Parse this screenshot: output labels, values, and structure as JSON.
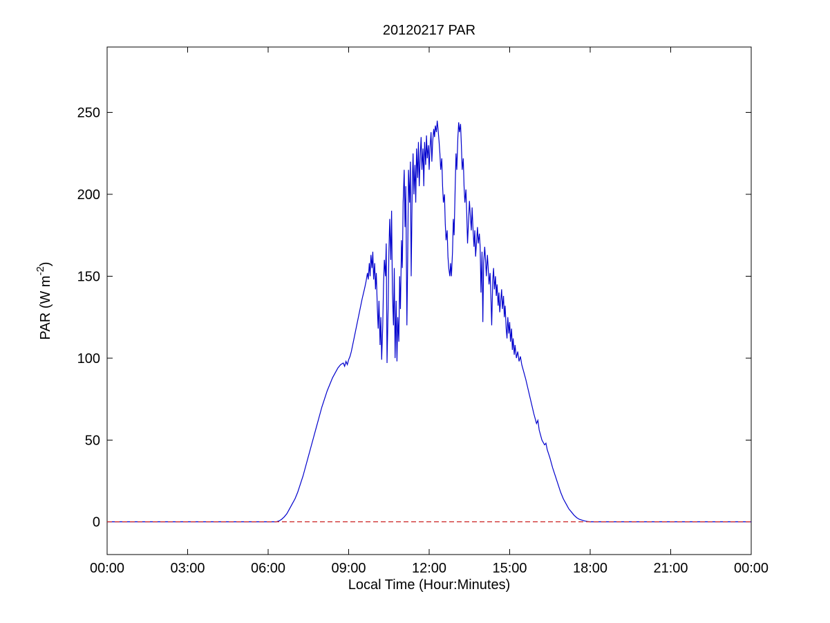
{
  "figure": {
    "title": "20120217 PAR",
    "xlabel": "Local Time (Hour:Minutes)",
    "ylabel_prefix": "PAR (W m",
    "ylabel_superscript": "-2",
    "ylabel_suffix": ")"
  },
  "axes": {
    "x_tick_labels": [
      "00:00",
      "03:00",
      "06:00",
      "09:00",
      "12:00",
      "15:00",
      "18:00",
      "21:00",
      "00:00"
    ],
    "y_tick_labels": [
      "0",
      "50",
      "100",
      "150",
      "200",
      "250"
    ]
  },
  "colors": {
    "data_line": "#0000CC",
    "zero_reference_line": "#CC2222",
    "axis": "#000000",
    "background": "#FFFFFF"
  },
  "chart_data": {
    "type": "line",
    "title": "20120217 PAR",
    "xlabel": "Local Time (Hour:Minutes)",
    "ylabel": "PAR (W m^-2)",
    "x_unit": "local time in hours (00:00 - 24:00)",
    "y_unit": "W m^-2",
    "xlim": [
      0,
      24
    ],
    "ylim": [
      -20,
      290
    ],
    "x_tick_hours": [
      0,
      3,
      6,
      9,
      12,
      15,
      18,
      21,
      24
    ],
    "y_tick_values": [
      0,
      50,
      100,
      150,
      200,
      250
    ],
    "grid": false,
    "legend": "none",
    "series": [
      {
        "name": "PAR",
        "color": "#0000CC",
        "style": "solid",
        "points": [
          [
            0,
            0
          ],
          [
            1,
            0
          ],
          [
            2,
            0
          ],
          [
            3,
            0
          ],
          [
            4,
            0
          ],
          [
            5,
            0
          ],
          [
            6,
            0
          ],
          [
            6.3,
            0
          ],
          [
            6.4,
            0.5
          ],
          [
            6.5,
            1.5
          ],
          [
            6.6,
            3
          ],
          [
            6.7,
            5
          ],
          [
            6.8,
            8
          ],
          [
            6.9,
            11
          ],
          [
            7.0,
            14
          ],
          [
            7.1,
            18
          ],
          [
            7.2,
            23
          ],
          [
            7.3,
            28
          ],
          [
            7.4,
            34
          ],
          [
            7.5,
            40
          ],
          [
            7.6,
            46
          ],
          [
            7.7,
            52
          ],
          [
            7.8,
            58
          ],
          [
            7.9,
            64
          ],
          [
            8.0,
            70
          ],
          [
            8.1,
            75
          ],
          [
            8.2,
            80
          ],
          [
            8.3,
            84
          ],
          [
            8.4,
            88
          ],
          [
            8.5,
            91
          ],
          [
            8.6,
            94
          ],
          [
            8.7,
            96
          ],
          [
            8.8,
            97
          ],
          [
            8.85,
            95
          ],
          [
            8.9,
            98
          ],
          [
            8.95,
            96
          ],
          [
            9.0,
            99
          ],
          [
            9.05,
            101
          ],
          [
            9.1,
            104
          ],
          [
            9.2,
            112
          ],
          [
            9.3,
            120
          ],
          [
            9.4,
            128
          ],
          [
            9.5,
            136
          ],
          [
            9.6,
            143
          ],
          [
            9.65,
            147
          ],
          [
            9.7,
            152
          ],
          [
            9.73,
            148
          ],
          [
            9.77,
            158
          ],
          [
            9.8,
            150
          ],
          [
            9.83,
            163
          ],
          [
            9.87,
            155
          ],
          [
            9.9,
            165
          ],
          [
            9.93,
            148
          ],
          [
            9.97,
            158
          ],
          [
            10.0,
            142
          ],
          [
            10.03,
            152
          ],
          [
            10.07,
            130
          ],
          [
            10.1,
            118
          ],
          [
            10.13,
            135
          ],
          [
            10.17,
            108
          ],
          [
            10.2,
            125
          ],
          [
            10.23,
            99
          ],
          [
            10.27,
            120
          ],
          [
            10.3,
            145
          ],
          [
            10.33,
            160
          ],
          [
            10.37,
            150
          ],
          [
            10.4,
            170
          ],
          [
            10.43,
            97
          ],
          [
            10.47,
            130
          ],
          [
            10.5,
            165
          ],
          [
            10.53,
            185
          ],
          [
            10.57,
            160
          ],
          [
            10.6,
            190
          ],
          [
            10.63,
            140
          ],
          [
            10.67,
            120
          ],
          [
            10.7,
            155
          ],
          [
            10.73,
            100
          ],
          [
            10.77,
            135
          ],
          [
            10.8,
            98
          ],
          [
            10.83,
            125
          ],
          [
            10.87,
            110
          ],
          [
            10.9,
            150
          ],
          [
            10.93,
            130
          ],
          [
            10.97,
            172
          ],
          [
            11.0,
            155
          ],
          [
            11.03,
            195
          ],
          [
            11.07,
            215
          ],
          [
            11.1,
            180
          ],
          [
            11.13,
            205
          ],
          [
            11.17,
            120
          ],
          [
            11.2,
            160
          ],
          [
            11.23,
            215
          ],
          [
            11.27,
            195
          ],
          [
            11.3,
            220
          ],
          [
            11.33,
            150
          ],
          [
            11.37,
            205
          ],
          [
            11.4,
            225
          ],
          [
            11.43,
            200
          ],
          [
            11.47,
            218
          ],
          [
            11.5,
            195
          ],
          [
            11.53,
            228
          ],
          [
            11.57,
            210
          ],
          [
            11.6,
            232
          ],
          [
            11.63,
            205
          ],
          [
            11.67,
            225
          ],
          [
            11.7,
            235
          ],
          [
            11.73,
            215
          ],
          [
            11.77,
            228
          ],
          [
            11.8,
            205
          ],
          [
            11.83,
            232
          ],
          [
            11.87,
            218
          ],
          [
            11.9,
            236
          ],
          [
            11.93,
            222
          ],
          [
            11.97,
            230
          ],
          [
            12.0,
            215
          ],
          [
            12.03,
            228
          ],
          [
            12.07,
            238
          ],
          [
            12.1,
            220
          ],
          [
            12.13,
            232
          ],
          [
            12.17,
            240
          ],
          [
            12.2,
            235
          ],
          [
            12.23,
            242
          ],
          [
            12.27,
            238
          ],
          [
            12.3,
            245
          ],
          [
            12.33,
            240
          ],
          [
            12.37,
            232
          ],
          [
            12.4,
            225
          ],
          [
            12.43,
            215
          ],
          [
            12.47,
            222
          ],
          [
            12.5,
            205
          ],
          [
            12.53,
            195
          ],
          [
            12.57,
            200
          ],
          [
            12.6,
            182
          ],
          [
            12.63,
            172
          ],
          [
            12.67,
            178
          ],
          [
            12.7,
            162
          ],
          [
            12.73,
            155
          ],
          [
            12.77,
            150
          ],
          [
            12.8,
            158
          ],
          [
            12.83,
            150
          ],
          [
            12.87,
            165
          ],
          [
            12.9,
            185
          ],
          [
            12.93,
            175
          ],
          [
            12.97,
            205
          ],
          [
            13.0,
            225
          ],
          [
            13.03,
            215
          ],
          [
            13.07,
            235
          ],
          [
            13.1,
            244
          ],
          [
            13.13,
            238
          ],
          [
            13.17,
            243
          ],
          [
            13.2,
            230
          ],
          [
            13.23,
            215
          ],
          [
            13.27,
            222
          ],
          [
            13.3,
            205
          ],
          [
            13.33,
            195
          ],
          [
            13.37,
            203
          ],
          [
            13.4,
            188
          ],
          [
            13.43,
            170
          ],
          [
            13.47,
            185
          ],
          [
            13.5,
            196
          ],
          [
            13.53,
            188
          ],
          [
            13.57,
            178
          ],
          [
            13.6,
            192
          ],
          [
            13.63,
            180
          ],
          [
            13.67,
            168
          ],
          [
            13.7,
            178
          ],
          [
            13.73,
            162
          ],
          [
            13.77,
            172
          ],
          [
            13.8,
            180
          ],
          [
            13.83,
            170
          ],
          [
            13.87,
            176
          ],
          [
            13.9,
            168
          ],
          [
            13.93,
            140
          ],
          [
            13.97,
            165
          ],
          [
            14.0,
            122
          ],
          [
            14.03,
            158
          ],
          [
            14.07,
            168
          ],
          [
            14.1,
            160
          ],
          [
            14.13,
            150
          ],
          [
            14.17,
            163
          ],
          [
            14.2,
            155
          ],
          [
            14.23,
            145
          ],
          [
            14.27,
            152
          ],
          [
            14.3,
            138
          ],
          [
            14.33,
            120
          ],
          [
            14.37,
            148
          ],
          [
            14.4,
            155
          ],
          [
            14.43,
            142
          ],
          [
            14.47,
            150
          ],
          [
            14.5,
            138
          ],
          [
            14.53,
            145
          ],
          [
            14.57,
            132
          ],
          [
            14.6,
            140
          ],
          [
            14.63,
            128
          ],
          [
            14.67,
            136
          ],
          [
            14.7,
            142
          ],
          [
            14.73,
            130
          ],
          [
            14.77,
            138
          ],
          [
            14.8,
            125
          ],
          [
            14.83,
            132
          ],
          [
            14.87,
            118
          ],
          [
            14.9,
            112
          ],
          [
            14.93,
            125
          ],
          [
            14.97,
            115
          ],
          [
            15.0,
            122
          ],
          [
            15.03,
            110
          ],
          [
            15.07,
            118
          ],
          [
            15.1,
            105
          ],
          [
            15.13,
            112
          ],
          [
            15.17,
            102
          ],
          [
            15.2,
            108
          ],
          [
            15.25,
            100
          ],
          [
            15.3,
            104
          ],
          [
            15.35,
            98
          ],
          [
            15.4,
            101
          ],
          [
            15.45,
            96
          ],
          [
            15.5,
            93
          ],
          [
            15.6,
            87
          ],
          [
            15.7,
            80
          ],
          [
            15.8,
            73
          ],
          [
            15.9,
            66
          ],
          [
            16.0,
            60
          ],
          [
            16.05,
            62
          ],
          [
            16.1,
            56
          ],
          [
            16.2,
            50
          ],
          [
            16.3,
            47
          ],
          [
            16.35,
            48
          ],
          [
            16.4,
            44
          ],
          [
            16.5,
            39
          ],
          [
            16.6,
            33
          ],
          [
            16.7,
            28
          ],
          [
            16.8,
            23
          ],
          [
            16.9,
            18
          ],
          [
            17.0,
            14
          ],
          [
            17.1,
            11
          ],
          [
            17.2,
            8
          ],
          [
            17.3,
            6
          ],
          [
            17.4,
            4
          ],
          [
            17.5,
            2.5
          ],
          [
            17.6,
            1.5
          ],
          [
            17.7,
            1
          ],
          [
            17.8,
            0.5
          ],
          [
            17.9,
            0.2
          ],
          [
            18.0,
            0
          ],
          [
            18.5,
            0
          ],
          [
            19,
            0
          ],
          [
            20,
            0
          ],
          [
            21,
            0
          ],
          [
            22,
            0
          ],
          [
            23,
            0
          ],
          [
            24,
            0
          ]
        ]
      },
      {
        "name": "zero reference",
        "color": "#CC2222",
        "style": "dashed",
        "points": [
          [
            0,
            0
          ],
          [
            24,
            0
          ]
        ]
      }
    ]
  }
}
